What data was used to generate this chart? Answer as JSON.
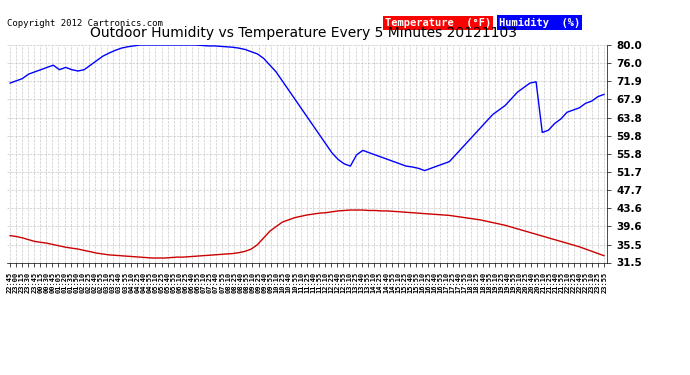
{
  "title": "Outdoor Humidity vs Temperature Every 5 Minutes 20121103",
  "copyright": "Copyright 2012 Cartronics.com",
  "legend_temp": "Temperature  (°F)",
  "legend_hum": "Humidity  (%)",
  "temp_color": "#0000FF",
  "hum_color": "#CC0000",
  "background_color": "#FFFFFF",
  "grid_color": "#BBBBBB",
  "ylim": [
    31.5,
    80.0
  ],
  "yticks": [
    31.5,
    35.5,
    39.6,
    43.6,
    47.7,
    51.7,
    55.8,
    59.8,
    63.8,
    67.9,
    71.9,
    76.0,
    80.0
  ],
  "x_labels": [
    "22:45",
    "23:00",
    "23:15",
    "23:30",
    "23:45",
    "00:15",
    "00:30",
    "00:45",
    "01:05",
    "01:20",
    "01:35",
    "01:50",
    "02:10",
    "02:25",
    "02:40",
    "02:55",
    "03:10",
    "03:25",
    "03:40",
    "03:55",
    "04:10",
    "04:25",
    "04:40",
    "04:55",
    "05:10",
    "05:25",
    "05:40",
    "05:55",
    "06:10",
    "06:25",
    "06:40",
    "06:55",
    "07:10",
    "07:25",
    "07:40",
    "07:55",
    "08:10",
    "08:25",
    "08:40",
    "08:55",
    "09:10",
    "09:25",
    "09:40",
    "09:55",
    "10:10",
    "10:25",
    "10:40",
    "10:55",
    "11:10",
    "11:25",
    "11:40",
    "11:55",
    "12:10",
    "12:25",
    "12:40",
    "12:55",
    "13:10",
    "13:25",
    "13:40",
    "13:55",
    "14:10",
    "14:25",
    "14:40",
    "14:55",
    "15:10",
    "15:25",
    "15:40",
    "15:55",
    "16:10",
    "16:25",
    "16:40",
    "16:55",
    "17:10",
    "17:25",
    "17:40",
    "17:55",
    "18:10",
    "18:25",
    "18:40",
    "18:55",
    "19:10",
    "19:25",
    "19:40",
    "19:55",
    "20:10",
    "20:25",
    "20:40",
    "20:55",
    "21:10",
    "21:25",
    "21:40",
    "21:55",
    "22:10",
    "22:25",
    "22:40",
    "22:55",
    "23:10",
    "23:25",
    "23:55"
  ],
  "humidity_data": [
    37.5,
    37.3,
    37.0,
    36.6,
    36.2,
    36.0,
    35.8,
    35.5,
    35.2,
    34.9,
    34.7,
    34.5,
    34.2,
    33.9,
    33.6,
    33.4,
    33.2,
    33.1,
    33.0,
    32.9,
    32.8,
    32.7,
    32.6,
    32.5,
    32.5,
    32.5,
    32.6,
    32.7,
    32.7,
    32.8,
    32.9,
    33.0,
    33.1,
    33.2,
    33.3,
    33.4,
    33.5,
    33.7,
    34.0,
    34.5,
    35.5,
    37.0,
    38.5,
    39.5,
    40.5,
    41.0,
    41.5,
    41.8,
    42.1,
    42.3,
    42.5,
    42.6,
    42.8,
    43.0,
    43.1,
    43.2,
    43.2,
    43.2,
    43.1,
    43.1,
    43.0,
    43.0,
    42.9,
    42.8,
    42.7,
    42.6,
    42.5,
    42.4,
    42.3,
    42.2,
    42.1,
    42.0,
    41.8,
    41.6,
    41.4,
    41.2,
    41.0,
    40.7,
    40.4,
    40.1,
    39.8,
    39.4,
    39.0,
    38.6,
    38.2,
    37.8,
    37.4,
    37.0,
    36.6,
    36.2,
    35.8,
    35.4,
    35.0,
    34.5,
    34.0,
    33.5,
    33.0
  ],
  "temperature_data": [
    71.5,
    72.0,
    72.5,
    73.5,
    74.0,
    74.5,
    75.0,
    75.5,
    74.5,
    75.0,
    74.5,
    74.2,
    74.5,
    75.5,
    76.5,
    77.5,
    78.2,
    78.8,
    79.3,
    79.6,
    79.8,
    80.0,
    80.0,
    80.0,
    80.0,
    80.0,
    80.0,
    80.0,
    80.0,
    80.0,
    80.0,
    79.9,
    79.8,
    79.8,
    79.7,
    79.6,
    79.5,
    79.3,
    79.0,
    78.5,
    78.0,
    77.0,
    75.5,
    74.0,
    72.0,
    70.0,
    68.0,
    66.0,
    64.0,
    62.0,
    60.0,
    58.0,
    56.0,
    54.5,
    53.5,
    53.0,
    55.5,
    56.5,
    56.0,
    55.5,
    55.0,
    54.5,
    54.0,
    53.5,
    53.0,
    52.8,
    52.5,
    52.0,
    52.5,
    53.0,
    53.5,
    54.0,
    55.5,
    57.0,
    58.5,
    60.0,
    61.5,
    63.0,
    64.5,
    65.5,
    66.5,
    68.0,
    69.5,
    70.5,
    71.5,
    71.8,
    60.5,
    61.0,
    62.5,
    63.5,
    65.0,
    65.5,
    66.0,
    67.0,
    67.5,
    68.5,
    69.0
  ]
}
